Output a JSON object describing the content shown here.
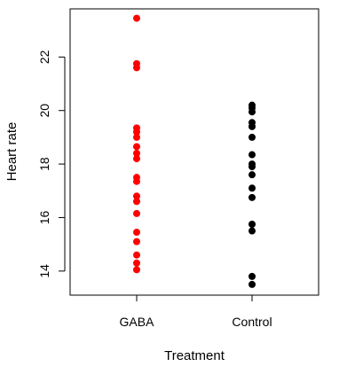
{
  "chart_data": {
    "type": "scatter",
    "title": "",
    "xlabel": "Treatment",
    "ylabel": "Heart rate",
    "categories": [
      "GABA",
      "Control"
    ],
    "ylim": [
      13.1,
      23.8
    ],
    "yticks": [
      14,
      16,
      18,
      20,
      22
    ],
    "grid": false,
    "legend": "none",
    "series": [
      {
        "category": "GABA",
        "color": "#ff0000",
        "values": [
          23.45,
          21.75,
          21.6,
          19.35,
          19.2,
          19.0,
          18.65,
          18.4,
          18.2,
          17.5,
          17.35,
          16.8,
          16.6,
          16.15,
          15.45,
          15.1,
          14.6,
          14.3,
          14.05
        ]
      },
      {
        "category": "Control",
        "color": "#000000",
        "values": [
          20.2,
          20.1,
          19.95,
          19.55,
          19.4,
          19.0,
          18.35,
          18.0,
          17.9,
          17.6,
          17.1,
          16.75,
          15.75,
          15.5,
          13.8,
          13.5
        ]
      }
    ]
  }
}
